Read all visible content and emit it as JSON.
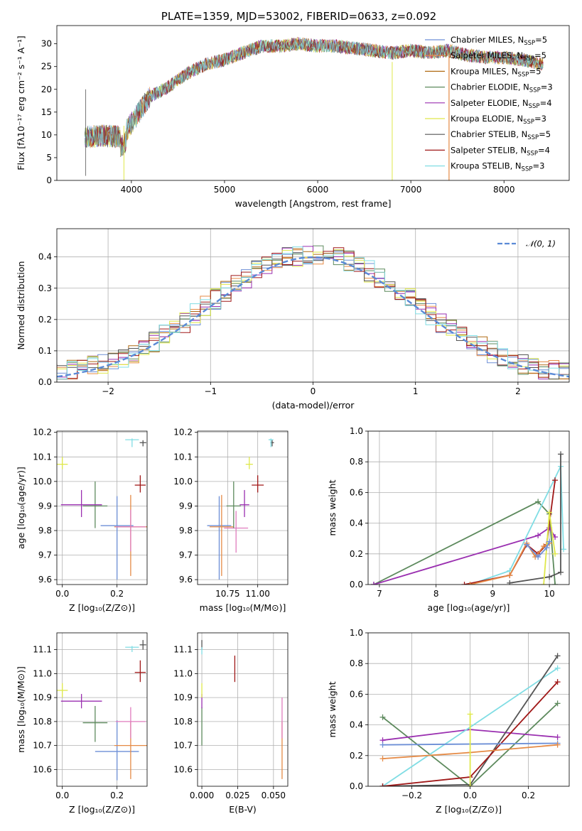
{
  "colors": {
    "chabrier_miles": "#6d8fd6",
    "salpeter_miles": "#e58a45",
    "kroupa_miles": "#b06a12",
    "chabrier_elodie": "#5d8a5d",
    "salpeter_elodie": "#9a2fb0",
    "kroupa_elodie": "#dfe84a",
    "chabrier_stelib": "#555555",
    "salpeter_stelib": "#a01818",
    "kroupa_stelib": "#80dde4",
    "gauss": "#5a8ad6",
    "pink": "#e07cbe"
  },
  "chart_data": [
    {
      "id": "spectrum",
      "type": "line",
      "title": "PLATE=1359, MJD=53002, FIBERID=0633, z=0.092",
      "xlabel": "wavelength [Angstrom, rest frame]",
      "ylabel": "Flux [fλ10⁻¹⁷ erg cm⁻² s⁻¹ A⁻¹]",
      "xlim": [
        3200,
        8700
      ],
      "ylim": [
        0,
        34
      ],
      "xticks": [
        4000,
        5000,
        6000,
        7000,
        8000
      ],
      "yticks": [
        0,
        5,
        10,
        15,
        20,
        25,
        30
      ],
      "legend_position": "right",
      "continuum_x": [
        3500,
        3700,
        3900,
        4000,
        4100,
        4200,
        4400,
        4600,
        4800,
        5000,
        5200,
        5400,
        5600,
        5800,
        6000,
        6200,
        6400,
        6600,
        6800,
        7000,
        7200,
        7400,
        7600,
        7800,
        8000,
        8200,
        8400
      ],
      "continuum_y": [
        9.5,
        9.8,
        9.5,
        12.5,
        15.5,
        18.5,
        20.5,
        23.5,
        25.5,
        26.5,
        28.0,
        29.5,
        29.5,
        30.0,
        29.5,
        29.5,
        29.0,
        28.5,
        28.0,
        28.5,
        28.0,
        28.5,
        27.5,
        27.0,
        27.0,
        26.5,
        25.5
      ],
      "series": [
        {
          "name": "Chabrier MILES, N",
          "sub": "SSP",
          "nssp": "=5",
          "color_key": "chabrier_miles"
        },
        {
          "name": "Salpeter MILES, N",
          "sub": "SSP",
          "nssp": "=5",
          "color_key": "salpeter_miles"
        },
        {
          "name": "Kroupa MILES, N",
          "sub": "SSP",
          "nssp": "=5",
          "color_key": "kroupa_miles"
        },
        {
          "name": "Chabrier ELODIE, N",
          "sub": "SSP",
          "nssp": "=3",
          "color_key": "chabrier_elodie"
        },
        {
          "name": "Salpeter ELODIE, N",
          "sub": "SSP",
          "nssp": "=4",
          "color_key": "salpeter_elodie"
        },
        {
          "name": "Kroupa ELODIE, N",
          "sub": "SSP",
          "nssp": "=3",
          "color_key": "kroupa_elodie"
        },
        {
          "name": "Chabrier STELIB, N",
          "sub": "SSP",
          "nssp": "=5",
          "color_key": "chabrier_stelib"
        },
        {
          "name": "Salpeter STELIB, N",
          "sub": "SSP",
          "nssp": "=4",
          "color_key": "salpeter_stelib"
        },
        {
          "name": "Kroupa STELIB, N",
          "sub": "SSP",
          "nssp": "=3",
          "color_key": "kroupa_stelib"
        }
      ]
    },
    {
      "id": "residuals",
      "type": "histogram",
      "xlabel": "(data-model)/error",
      "ylabel": "Normed distribution",
      "xlim": [
        -2.5,
        2.5
      ],
      "ylim": [
        0,
        0.49
      ],
      "xticks": [
        -2,
        -1,
        0,
        1,
        2
      ],
      "yticks": [
        0.0,
        0.1,
        0.2,
        0.3,
        0.4
      ],
      "grid": true,
      "legend": "𝒩(0, 1)",
      "legend_position": "top-right",
      "bin_width": 0.1
    },
    {
      "id": "age_vs_Z",
      "type": "errorbar",
      "xlabel": "Z [log₁₀(Z/Z⊙)]",
      "ylabel": "age  [log₁₀(age/yr)]",
      "xlim": [
        -0.02,
        0.31
      ],
      "ylim": [
        9.58,
        10.205
      ],
      "xticks": [
        0.0,
        0.2
      ],
      "yticks": [
        9.6,
        9.7,
        9.8,
        9.9,
        10.0,
        10.1,
        10.2
      ],
      "grid": true,
      "points": [
        {
          "x": 0.2,
          "y": 9.82,
          "xerr": 0.06,
          "yerr": [
            0.22,
            0.12
          ],
          "color_key": "chabrier_miles"
        },
        {
          "x": 0.25,
          "y": 9.815,
          "xerr": 0.06,
          "yerr": [
            0.2,
            0.13
          ],
          "color_key": "salpeter_miles"
        },
        {
          "x": 0.25,
          "y": 9.815,
          "xerr": 0.055,
          "yerr": [
            0.1,
            0.07
          ],
          "color_key": "pink"
        },
        {
          "x": 0.12,
          "y": 9.9,
          "xerr": 0.045,
          "yerr": [
            0.09,
            0.1
          ],
          "color_key": "chabrier_elodie"
        },
        {
          "x": 0.07,
          "y": 9.905,
          "xerr": 0.075,
          "yerr": [
            0.05,
            0.06
          ],
          "color_key": "salpeter_elodie"
        },
        {
          "x": 0.0,
          "y": 10.07,
          "xerr": 0.02,
          "yerr": [
            0.02,
            0.03
          ],
          "color_key": "kroupa_elodie"
        },
        {
          "x": 0.295,
          "y": 10.158,
          "xerr": 0.012,
          "yerr": [
            0.015,
            0.01
          ],
          "color_key": "chabrier_stelib"
        },
        {
          "x": 0.285,
          "y": 9.985,
          "xerr": 0.02,
          "yerr": [
            0.03,
            0.04
          ],
          "color_key": "salpeter_stelib"
        },
        {
          "x": 0.255,
          "y": 10.17,
          "xerr": 0.025,
          "yerr": [
            0.03,
            0.005
          ],
          "color_key": "kroupa_stelib"
        }
      ]
    },
    {
      "id": "age_vs_mass",
      "type": "errorbar",
      "xlabel": "mass [log₁₀(M/M⊙)]",
      "ylabel": "",
      "xlim": [
        10.5,
        11.25
      ],
      "ylim": [
        9.58,
        10.205
      ],
      "xticks": [
        10.75,
        11.0
      ],
      "yticks": [
        9.6,
        9.7,
        9.8,
        9.9,
        10.0,
        10.1,
        10.2
      ],
      "grid": true,
      "points": [
        {
          "x": 10.68,
          "y": 9.82,
          "xerr": 0.1,
          "yerr": [
            0.22,
            0.12
          ],
          "color_key": "chabrier_miles"
        },
        {
          "x": 10.7,
          "y": 9.815,
          "xerr": 0.1,
          "yerr": [
            0.2,
            0.13
          ],
          "color_key": "salpeter_miles"
        },
        {
          "x": 10.82,
          "y": 9.81,
          "xerr": 0.1,
          "yerr": [
            0.1,
            0.07
          ],
          "color_key": "pink"
        },
        {
          "x": 10.8,
          "y": 9.9,
          "xerr": 0.06,
          "yerr": [
            0.09,
            0.1
          ],
          "color_key": "chabrier_elodie"
        },
        {
          "x": 10.89,
          "y": 9.905,
          "xerr": 0.04,
          "yerr": [
            0.05,
            0.06
          ],
          "color_key": "salpeter_elodie"
        },
        {
          "x": 10.93,
          "y": 10.07,
          "xerr": 0.03,
          "yerr": [
            0.02,
            0.03
          ],
          "color_key": "kroupa_elodie"
        },
        {
          "x": 11.12,
          "y": 10.158,
          "xerr": 0.015,
          "yerr": [
            0.015,
            0.01
          ],
          "color_key": "chabrier_stelib"
        },
        {
          "x": 11.0,
          "y": 9.985,
          "xerr": 0.05,
          "yerr": [
            0.03,
            0.04
          ],
          "color_key": "salpeter_stelib"
        },
        {
          "x": 11.11,
          "y": 10.17,
          "xerr": 0.02,
          "yerr": [
            0.03,
            0.005
          ],
          "color_key": "kroupa_stelib"
        }
      ]
    },
    {
      "id": "mass_weight_vs_age",
      "type": "line",
      "xlabel": "age  [log₁₀(age/yr)]",
      "ylabel": "mass weight",
      "xlim": [
        6.8,
        10.35
      ],
      "ylim": [
        0.0,
        1.0
      ],
      "xticks": [
        7,
        8,
        9,
        10
      ],
      "yticks": [
        0.0,
        0.2,
        0.4,
        0.6,
        0.8,
        1.0
      ],
      "grid": true,
      "series": [
        {
          "color_key": "chabrier_elodie",
          "x": [
            6.9,
            9.8,
            10.0,
            10.1
          ],
          "y": [
            0.0,
            0.54,
            0.46,
            0.0
          ]
        },
        {
          "color_key": "salpeter_elodie",
          "x": [
            6.9,
            9.8,
            10.0,
            10.1
          ],
          "y": [
            0.0,
            0.32,
            0.37,
            0.31
          ]
        },
        {
          "color_key": "kroupa_stelib",
          "x": [
            8.6,
            9.3,
            10.2,
            10.25
          ],
          "y": [
            0.0,
            0.09,
            0.77,
            0.23
          ]
        },
        {
          "color_key": "chabrier_stelib",
          "x": [
            9.3,
            10.0,
            10.2,
            10.2
          ],
          "y": [
            0.01,
            0.05,
            0.08,
            0.85
          ]
        },
        {
          "color_key": "salpeter_stelib",
          "x": [
            8.5,
            9.3,
            9.6,
            9.8,
            9.95,
            10.1
          ],
          "y": [
            0.0,
            0.06,
            0.26,
            0.2,
            0.26,
            0.68
          ]
        },
        {
          "color_key": "salpeter_miles",
          "x": [
            8.6,
            9.3,
            9.6,
            9.75,
            9.9,
            10.0
          ],
          "y": [
            0.0,
            0.06,
            0.27,
            0.18,
            0.25,
            0.27
          ]
        },
        {
          "color_key": "kroupa_elodie",
          "x": [
            9.9,
            10.0,
            10.1
          ],
          "y": [
            0.0,
            0.47,
            0.2
          ]
        },
        {
          "color_key": "chabrier_miles",
          "x": [
            9.6,
            9.8,
            9.95,
            10.0
          ],
          "y": [
            0.26,
            0.18,
            0.24,
            0.28
          ]
        }
      ]
    },
    {
      "id": "mass_vs_Z",
      "type": "errorbar",
      "xlabel": "Z [log₁₀(Z/Z⊙)]",
      "ylabel": "mass [log₁₀(M/M⊙)]",
      "xlim": [
        -0.02,
        0.31
      ],
      "ylim": [
        10.53,
        11.17
      ],
      "xticks": [
        0.0,
        0.2
      ],
      "yticks": [
        10.6,
        10.7,
        10.8,
        10.9,
        11.0,
        11.1
      ],
      "grid": true,
      "points": [
        {
          "x": 0.2,
          "y": 10.675,
          "xerr": 0.08,
          "yerr": [
            0.12,
            0.13
          ],
          "color_key": "chabrier_miles"
        },
        {
          "x": 0.25,
          "y": 10.7,
          "xerr": 0.06,
          "yerr": [
            0.14,
            0.1
          ],
          "color_key": "salpeter_miles"
        },
        {
          "x": 0.25,
          "y": 10.8,
          "xerr": 0.055,
          "yerr": [
            0.07,
            0.06
          ],
          "color_key": "pink"
        },
        {
          "x": 0.12,
          "y": 10.795,
          "xerr": 0.045,
          "yerr": [
            0.08,
            0.07
          ],
          "color_key": "chabrier_elodie"
        },
        {
          "x": 0.07,
          "y": 10.885,
          "xerr": 0.075,
          "yerr": [
            0.03,
            0.03
          ],
          "color_key": "salpeter_elodie"
        },
        {
          "x": 0.0,
          "y": 10.93,
          "xerr": 0.02,
          "yerr": [
            0.03,
            0.03
          ],
          "color_key": "kroupa_elodie"
        },
        {
          "x": 0.295,
          "y": 11.12,
          "xerr": 0.012,
          "yerr": [
            0.02,
            0.02
          ],
          "color_key": "chabrier_stelib"
        },
        {
          "x": 0.285,
          "y": 11.005,
          "xerr": 0.02,
          "yerr": [
            0.04,
            0.05
          ],
          "color_key": "salpeter_stelib"
        },
        {
          "x": 0.255,
          "y": 11.11,
          "xerr": 0.025,
          "yerr": [
            0.02,
            0.005
          ],
          "color_key": "kroupa_stelib"
        }
      ]
    },
    {
      "id": "mass_vs_ebv",
      "type": "errorbar",
      "xlabel": "E(B-V)",
      "ylabel": "",
      "xlim": [
        -0.003,
        0.06
      ],
      "ylim": [
        10.53,
        11.17
      ],
      "xticks": [
        0.0,
        0.025,
        0.05
      ],
      "yticks": [
        10.6,
        10.7,
        10.8,
        10.9,
        11.0,
        11.1
      ],
      "grid": true,
      "points": [
        {
          "x": 0.0,
          "y": 10.78,
          "xerr": 0.0,
          "yerr": [
            0.08,
            0.08
          ],
          "color_key": "chabrier_elodie"
        },
        {
          "x": 0.0,
          "y": 10.885,
          "xerr": 0.0,
          "yerr": [
            0.03,
            0.03
          ],
          "color_key": "salpeter_elodie"
        },
        {
          "x": 0.0,
          "y": 10.93,
          "xerr": 0.0,
          "yerr": [
            0.03,
            0.03
          ],
          "color_key": "kroupa_elodie"
        },
        {
          "x": 0.0,
          "y": 11.12,
          "xerr": 0.0,
          "yerr": [
            0.02,
            0.02
          ],
          "color_key": "chabrier_stelib"
        },
        {
          "x": 0.0,
          "y": 11.1,
          "xerr": 0.0,
          "yerr": [
            0.02,
            0.01
          ],
          "color_key": "kroupa_stelib"
        },
        {
          "x": 0.023,
          "y": 11.005,
          "xerr": 0.0,
          "yerr": [
            0.04,
            0.07
          ],
          "color_key": "salpeter_stelib"
        },
        {
          "x": 0.056,
          "y": 10.7,
          "xerr": 0.0,
          "yerr": [
            0.14,
            0.1
          ],
          "color_key": "salpeter_miles"
        },
        {
          "x": 0.056,
          "y": 10.8,
          "xerr": 0.0,
          "yerr": [
            0.07,
            0.1
          ],
          "color_key": "pink"
        }
      ]
    },
    {
      "id": "mass_weight_vs_Z",
      "type": "line",
      "xlabel": "Z [log₁₀(Z/Z⊙)]",
      "ylabel": "mass weight",
      "xlim": [
        -0.35,
        0.34
      ],
      "ylim": [
        0.0,
        1.0
      ],
      "xticks": [
        -0.2,
        0.0,
        0.2
      ],
      "yticks": [
        0.0,
        0.2,
        0.4,
        0.6,
        0.8,
        1.0
      ],
      "grid": true,
      "series": [
        {
          "color_key": "chabrier_elodie",
          "x": [
            -0.3,
            0.0,
            0.3
          ],
          "y": [
            0.45,
            0.0,
            0.54
          ]
        },
        {
          "color_key": "salpeter_elodie",
          "x": [
            -0.3,
            0.0,
            0.3
          ],
          "y": [
            0.3,
            0.37,
            0.32
          ]
        },
        {
          "color_key": "kroupa_stelib",
          "x": [
            -0.3,
            0.3
          ],
          "y": [
            0.0,
            0.77
          ]
        },
        {
          "color_key": "chabrier_stelib",
          "x": [
            -0.3,
            0.0,
            0.3
          ],
          "y": [
            0.0,
            0.01,
            0.85
          ]
        },
        {
          "color_key": "salpeter_stelib",
          "x": [
            -0.3,
            0.0,
            0.3
          ],
          "y": [
            0.0,
            0.06,
            0.68
          ]
        },
        {
          "color_key": "chabrier_miles",
          "x": [
            -0.3,
            0.3
          ],
          "y": [
            0.27,
            0.28
          ]
        },
        {
          "color_key": "salpeter_miles",
          "x": [
            -0.3,
            0.0,
            0.3
          ],
          "y": [
            0.18,
            0.22,
            0.27
          ]
        },
        {
          "color_key": "kroupa_elodie",
          "x": [
            0.0,
            0.0
          ],
          "y": [
            0.0,
            0.47
          ]
        }
      ]
    }
  ]
}
